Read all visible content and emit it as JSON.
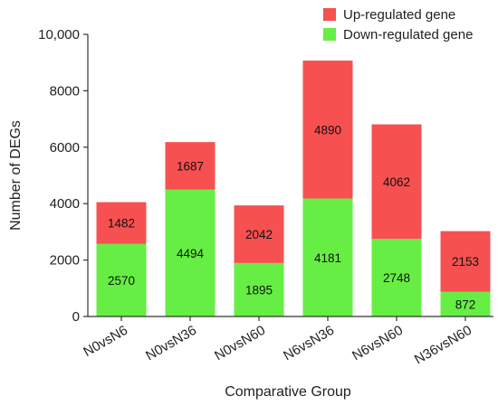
{
  "chart_data": {
    "type": "bar",
    "stacked": true,
    "categories": [
      "N0vsN6",
      "N0vsN36",
      "N0vsN60",
      "N6vsN36",
      "N6vsN60",
      "N36vsN60"
    ],
    "series": [
      {
        "name": "Down-regulated gene",
        "color": "#66ee44",
        "values": [
          2570,
          4494,
          1895,
          4181,
          2748,
          872
        ]
      },
      {
        "name": "Up-regulated gene",
        "color": "#f75050",
        "values": [
          1482,
          1687,
          2042,
          4890,
          4062,
          2153
        ]
      }
    ],
    "legend_order": [
      "Up-regulated gene",
      "Down-regulated gene"
    ],
    "legend_position": "top-right",
    "xlabel": "Comparative Group",
    "ylabel": "Number of DEGs",
    "ylim": [
      0,
      10000
    ],
    "yticks": [
      0,
      2000,
      4000,
      6000,
      8000,
      10000
    ],
    "ytick_labels": [
      "0",
      "2000",
      "4000",
      "6000",
      "8000",
      "10,000"
    ],
    "grid": false
  }
}
